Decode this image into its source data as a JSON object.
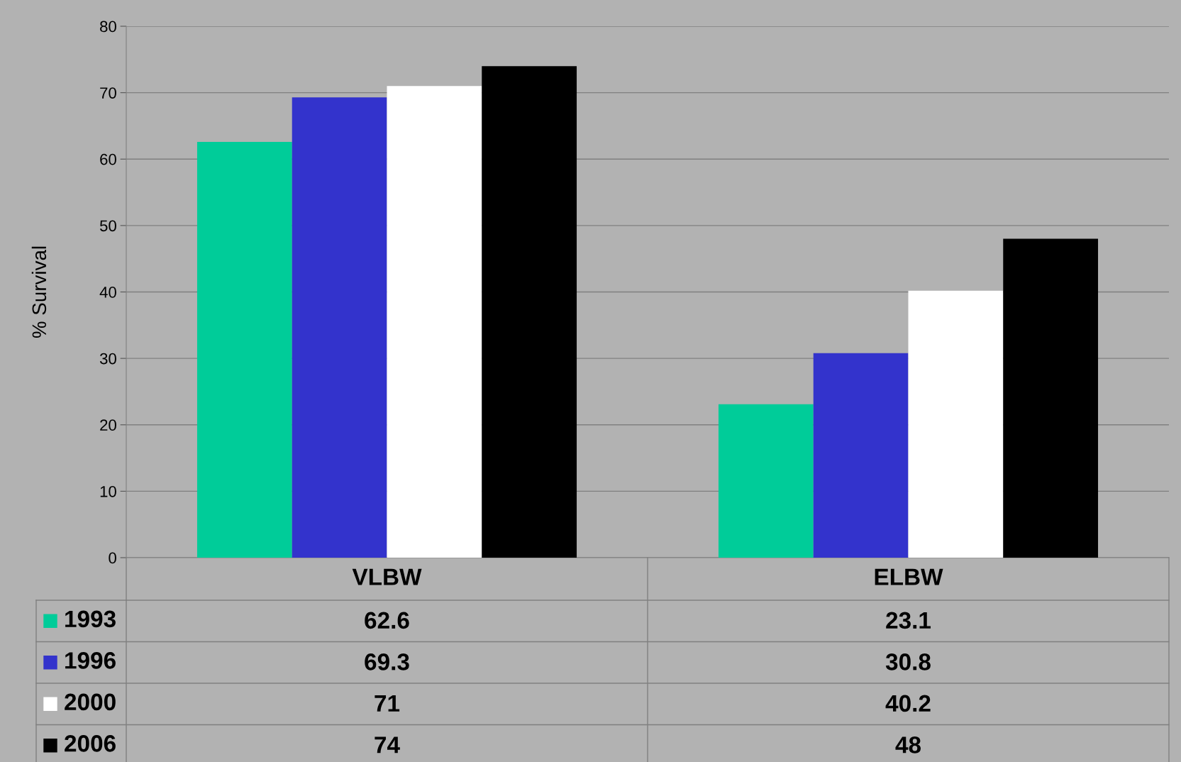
{
  "chart_data": {
    "type": "bar",
    "ylabel": "% Survival",
    "categories": [
      "VLBW",
      "ELBW"
    ],
    "series": [
      {
        "name": "1993",
        "color": "#00cc99",
        "values": [
          62.6,
          23.1
        ]
      },
      {
        "name": "1996",
        "color": "#3333cc",
        "values": [
          69.3,
          30.8
        ]
      },
      {
        "name": "2000",
        "color": "#ffffff",
        "values": [
          71,
          40.2
        ]
      },
      {
        "name": "2006",
        "color": "#000000",
        "values": [
          74,
          48
        ]
      }
    ],
    "ylim": [
      0,
      80
    ],
    "yticks": [
      0,
      10,
      20,
      30,
      40,
      50,
      60,
      70,
      80
    ],
    "grid": "y",
    "legend": "bottom",
    "data_labels": true
  }
}
